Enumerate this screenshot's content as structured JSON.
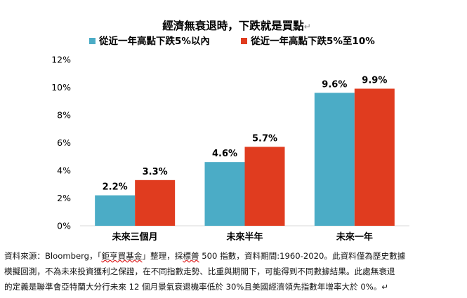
{
  "chart_data": {
    "type": "bar",
    "title": "經濟無衰退時，下跌就是買點",
    "title_suffix": "↵",
    "categories": [
      "未來三個月",
      "未來半年",
      "未來一年"
    ],
    "series": [
      {
        "name": "從近一年高點下跌5%以內",
        "values": [
          2.2,
          4.6,
          9.6
        ],
        "labels": [
          "2.2%",
          "4.6%",
          "9.6%"
        ],
        "color": "#4bacc6"
      },
      {
        "name": "從近一年高點下跌5%至10%",
        "values": [
          3.3,
          5.7,
          9.9
        ],
        "labels": [
          "3.3%",
          "5.7%",
          "9.9%"
        ],
        "color": "#e03c1f"
      }
    ],
    "yticks": [
      0,
      2,
      4,
      6,
      8,
      10,
      12
    ],
    "ytick_labels": [
      "0%",
      "2%",
      "4%",
      "6%",
      "8%",
      "10%",
      "12%"
    ],
    "ylim": [
      0,
      12
    ],
    "xlabel": "",
    "ylabel": "",
    "grid": false,
    "legend_position": "top"
  },
  "footnote": {
    "line1_a": "資料來源：Bloomberg，「",
    "line1_b": "鉅亨買基金",
    "line1_c": "」整理，採",
    "line1_d": "標普",
    "line1_e": " 500 指數，資料期間:1960-2020。此資料僅為歷史數據",
    "line2": "模擬回測，不為未來投資獲利之保證，在不同指數走勢、比重與期間下，可能得到不同數據結果。此處無衰退",
    "line3": "的定義是聯準會亞特蘭大分行未來 12 個月景氣衰退機率低於 30%且美國經濟領先指數年增率大於 0%。↵"
  }
}
